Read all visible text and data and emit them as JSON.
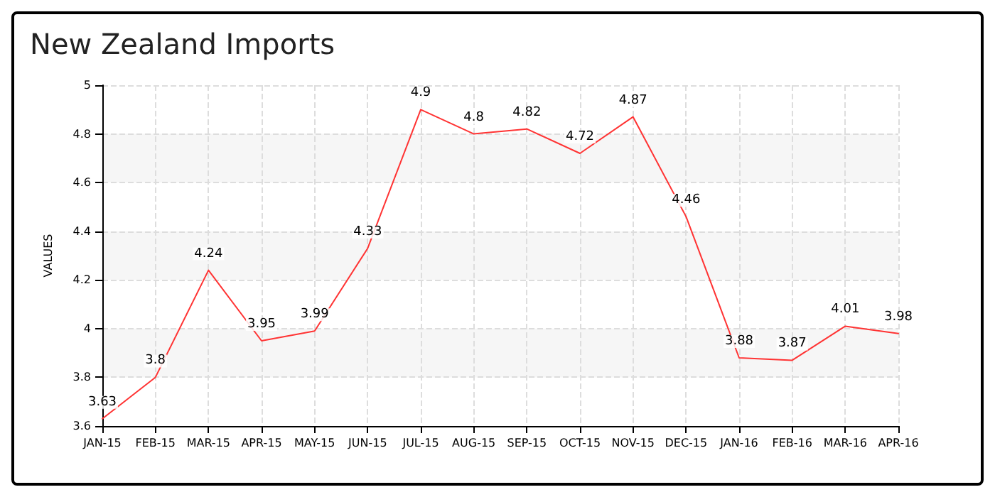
{
  "chart_data": {
    "type": "line",
    "title": "New Zealand Imports",
    "ylabel": "VALUES",
    "categories": [
      "JAN-15",
      "FEB-15",
      "MAR-15",
      "APR-15",
      "MAY-15",
      "JUN-15",
      "JUL-15",
      "AUG-15",
      "SEP-15",
      "OCT-15",
      "NOV-15",
      "DEC-15",
      "JAN-16",
      "FEB-16",
      "MAR-16",
      "APR-16"
    ],
    "series": [
      {
        "color": "#ff3333",
        "values": [
          3.63,
          3.8,
          4.24,
          3.95,
          3.99,
          4.33,
          4.9,
          4.8,
          4.82,
          4.72,
          4.87,
          4.46,
          3.88,
          3.87,
          4.01,
          3.98
        ]
      }
    ],
    "ylim": [
      3.6,
      5
    ],
    "yticks": [
      3.6,
      3.8,
      4,
      4.2,
      4.4,
      4.6,
      4.8,
      5
    ],
    "grid": true,
    "data_labels": true,
    "marker": "none",
    "line_style": "solid"
  }
}
